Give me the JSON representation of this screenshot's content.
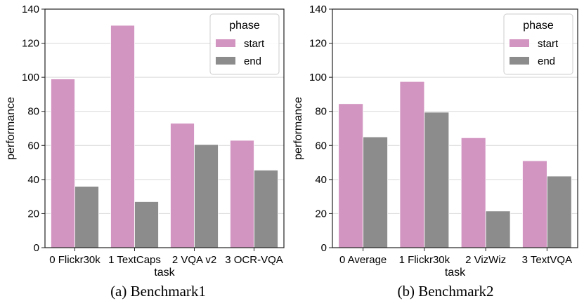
{
  "style": {
    "start_color": "#d295c1",
    "end_color": "#8c8c8c",
    "grid_color": "#d9d9d9",
    "axis_color": "#222222",
    "legend_border": "#cccccc"
  },
  "chart_data": [
    {
      "type": "bar",
      "title": "",
      "caption": "(a) Benchmark1",
      "xlabel": "task",
      "ylabel": "performance",
      "ylim": [
        0,
        140
      ],
      "yticks": [
        "0",
        "20",
        "40",
        "60",
        "80",
        "100",
        "120",
        "140"
      ],
      "categories": [
        "0 Flickr30k",
        "1 TextCaps",
        "2 VQA v2",
        "3 OCR-VQA"
      ],
      "legend": {
        "title": "phase",
        "position": "top-right"
      },
      "series": [
        {
          "name": "start",
          "values": [
            99,
            130.5,
            73,
            63
          ]
        },
        {
          "name": "end",
          "values": [
            36,
            27,
            60.5,
            45.5
          ]
        }
      ],
      "grid": true
    },
    {
      "type": "bar",
      "title": "",
      "caption": "(b) Benchmark2",
      "xlabel": "task",
      "ylabel": "performance",
      "ylim": [
        0,
        140
      ],
      "yticks": [
        "0",
        "20",
        "40",
        "60",
        "80",
        "100",
        "120",
        "140"
      ],
      "categories": [
        "0 Average",
        "1 Flickr30k",
        "2 VizWiz",
        "3 TextVQA"
      ],
      "legend": {
        "title": "phase",
        "position": "top-right"
      },
      "series": [
        {
          "name": "start",
          "values": [
            84.5,
            97.5,
            64.5,
            51
          ]
        },
        {
          "name": "end",
          "values": [
            65,
            79.5,
            21.5,
            42
          ]
        }
      ],
      "grid": true
    }
  ]
}
